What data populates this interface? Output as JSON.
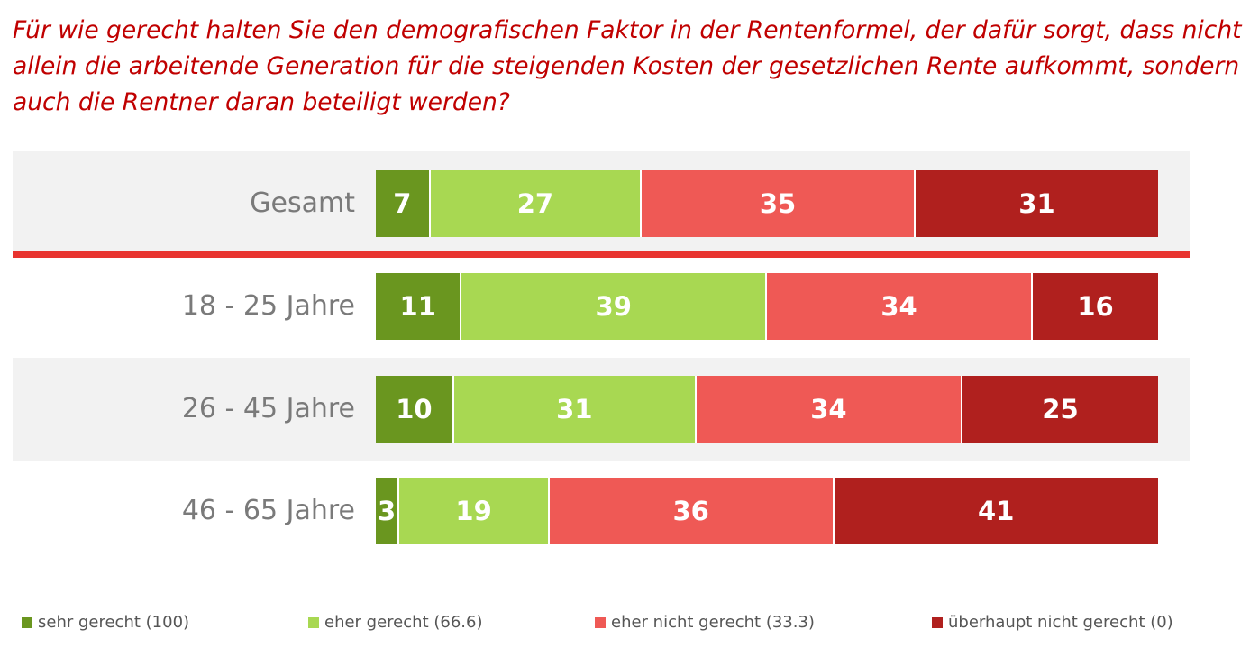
{
  "title_lines": [
    "Für wie gerecht halten Sie den demografischen Faktor in der Rentenformel, der dafür sorgt, dass nicht",
    "allein die arbeitende Generation für die steigenden Kosten der gesetzlichen Rente aufkommt, sondern",
    "auch die Rentner daran beteiligt werden?"
  ],
  "colors": {
    "title": "#c00000",
    "separator": "#e8332f",
    "band": "#f2f2f2"
  },
  "chart_data": {
    "type": "bar",
    "orientation": "horizontal",
    "stacked": true,
    "categories": [
      "Gesamt",
      "18 - 25 Jahre",
      "26 - 45 Jahre",
      "46 - 65 Jahre"
    ],
    "series": [
      {
        "name": "sehr gerecht (100)",
        "color": "#6a961f",
        "values": [
          7,
          11,
          10,
          3
        ]
      },
      {
        "name": "eher gerecht (66.6)",
        "color": "#a8d852",
        "values": [
          27,
          39,
          31,
          19
        ]
      },
      {
        "name": "eher nicht gerecht (33.3)",
        "color": "#ef5955",
        "values": [
          35,
          34,
          34,
          36
        ]
      },
      {
        "name": "überhaupt nicht gerecht (0)",
        "color": "#b0201e",
        "values": [
          31,
          16,
          25,
          41
        ]
      }
    ],
    "legend_position": "bottom",
    "data_labels": true
  }
}
